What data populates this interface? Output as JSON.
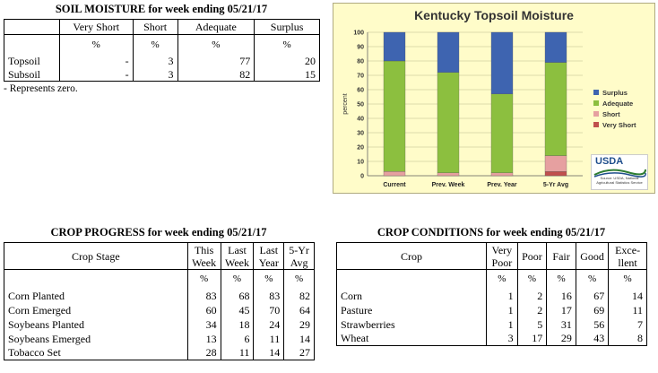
{
  "soil": {
    "title": "SOIL MOISTURE for week ending 05/21/17",
    "headers": [
      "Very Short",
      "Short",
      "Adequate",
      "Surplus"
    ],
    "units": [
      "%",
      "%",
      "%",
      "%"
    ],
    "rows": [
      {
        "label": "Topsoil",
        "values": [
          "-",
          "3",
          "77",
          "20"
        ]
      },
      {
        "label": "Subsoil",
        "values": [
          "-",
          "3",
          "82",
          "15"
        ]
      }
    ],
    "note": "- Represents zero."
  },
  "chart_data": {
    "type": "bar",
    "stacked": true,
    "title": "Kentucky Topsoil Moisture",
    "ylabel": "percent",
    "ylim": [
      0,
      100
    ],
    "yticks": [
      "0",
      "10",
      "20",
      "30",
      "40",
      "50",
      "60",
      "70",
      "80",
      "90",
      "100"
    ],
    "categories": [
      "Current",
      "Prev. Week",
      "Prev. Year",
      "5-Yr Avg"
    ],
    "series": [
      {
        "name": "Very Short",
        "color": "#c0504d",
        "values": [
          0,
          0,
          0,
          3
        ]
      },
      {
        "name": "Short",
        "color": "#e6a0a0",
        "values": [
          3,
          2,
          2,
          11
        ]
      },
      {
        "name": "Adequate",
        "color": "#8cbf3f",
        "values": [
          77,
          70,
          55,
          65
        ]
      },
      {
        "name": "Surplus",
        "color": "#3e64b0",
        "values": [
          20,
          28,
          43,
          21
        ]
      }
    ],
    "legend_order": [
      "Surplus",
      "Adequate",
      "Short",
      "Very Short"
    ],
    "legend": "right",
    "grid": true
  },
  "logo": {
    "text": "USDA",
    "source": "Source: USDA, National Agricultural Statistics Service"
  },
  "progress": {
    "title": "CROP PROGRESS for week ending 05/21/17",
    "stage_header": "Crop Stage",
    "headers": [
      [
        "This",
        "Week"
      ],
      [
        "Last",
        "Week"
      ],
      [
        "Last",
        "Year"
      ],
      [
        "5-Yr",
        "Avg"
      ]
    ],
    "units": [
      "%",
      "%",
      "%",
      "%"
    ],
    "rows": [
      {
        "label": "Corn Planted",
        "values": [
          "83",
          "68",
          "83",
          "82"
        ]
      },
      {
        "label": "Corn Emerged",
        "values": [
          "60",
          "45",
          "70",
          "64"
        ]
      },
      {
        "label": "Soybeans Planted",
        "values": [
          "34",
          "18",
          "24",
          "29"
        ]
      },
      {
        "label": "Soybeans Emerged",
        "values": [
          "13",
          "6",
          "11",
          "14"
        ]
      },
      {
        "label": "Tobacco Set",
        "values": [
          "28",
          "11",
          "14",
          "27"
        ]
      }
    ]
  },
  "conditions": {
    "title": "CROP CONDITIONS for week ending 05/21/17",
    "crop_header": "Crop",
    "headers": [
      [
        "Very",
        "Poor"
      ],
      [
        "Poor"
      ],
      [
        "Fair"
      ],
      [
        "Good"
      ],
      [
        "Exce-",
        "llent"
      ]
    ],
    "units": [
      "%",
      "%",
      "%",
      "%",
      "%"
    ],
    "rows": [
      {
        "label": "Corn",
        "values": [
          "1",
          "2",
          "16",
          "67",
          "14"
        ]
      },
      {
        "label": "Pasture",
        "values": [
          "1",
          "2",
          "17",
          "69",
          "11"
        ]
      },
      {
        "label": "Strawberries",
        "values": [
          "1",
          "5",
          "31",
          "56",
          "7"
        ]
      },
      {
        "label": "Wheat",
        "values": [
          "3",
          "17",
          "29",
          "43",
          "8"
        ]
      }
    ]
  }
}
